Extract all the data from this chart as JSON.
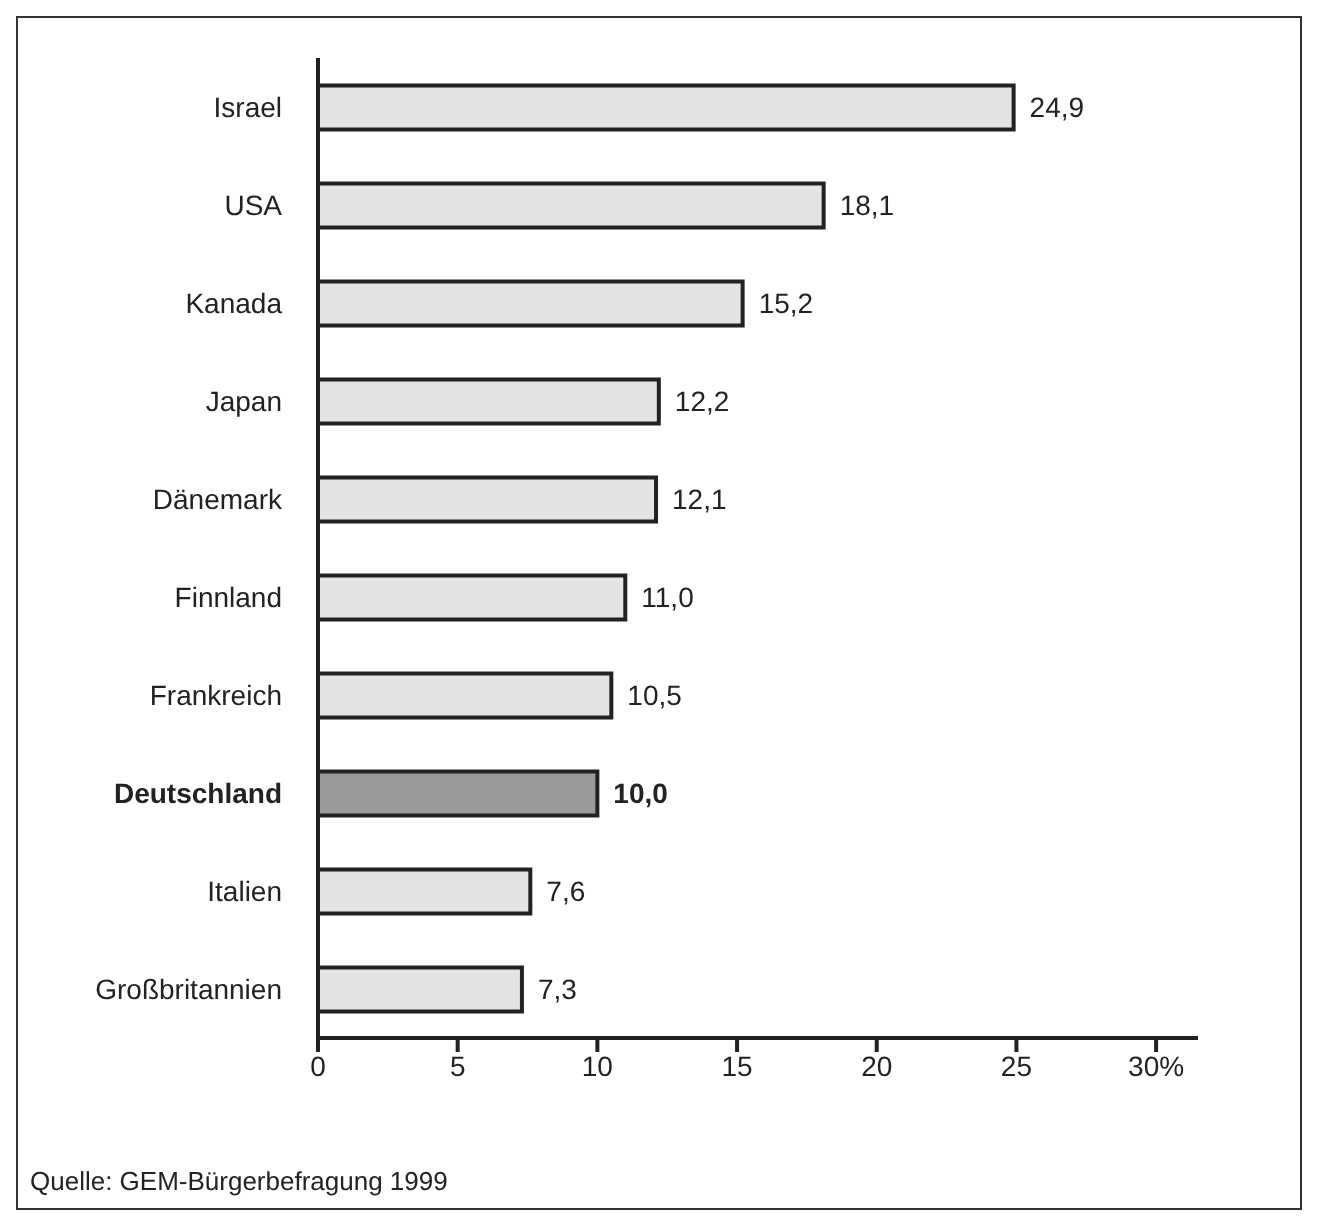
{
  "chart_data": {
    "type": "bar",
    "orientation": "horizontal",
    "categories": [
      "Israel",
      "USA",
      "Kanada",
      "Japan",
      "Dänemark",
      "Finnland",
      "Frankreich",
      "Deutschland",
      "Italien",
      "Großbritannien"
    ],
    "values": [
      24.9,
      18.1,
      15.2,
      12.2,
      12.1,
      11.0,
      10.5,
      10.0,
      7.6,
      7.3
    ],
    "value_labels": [
      "24,9",
      "18,1",
      "15,2",
      "12,2",
      "12,1",
      "11,0",
      "10,5",
      "10,0",
      "7,6",
      "7,3"
    ],
    "colors": [
      "#e4e4e4",
      "#e4e4e4",
      "#e4e4e4",
      "#e4e4e4",
      "#e4e4e4",
      "#e4e4e4",
      "#e4e4e4",
      "#9a9a9a",
      "#e4e4e4",
      "#e4e4e4"
    ],
    "xlim": [
      0,
      31.5
    ],
    "xticks": [
      0,
      5,
      10,
      15,
      20,
      25,
      {
        "value": 30,
        "label": "30%"
      }
    ],
    "grid": false,
    "legend": false,
    "annotations": [
      "Quelle: GEM-Bürgerbefragung 1999"
    ]
  }
}
